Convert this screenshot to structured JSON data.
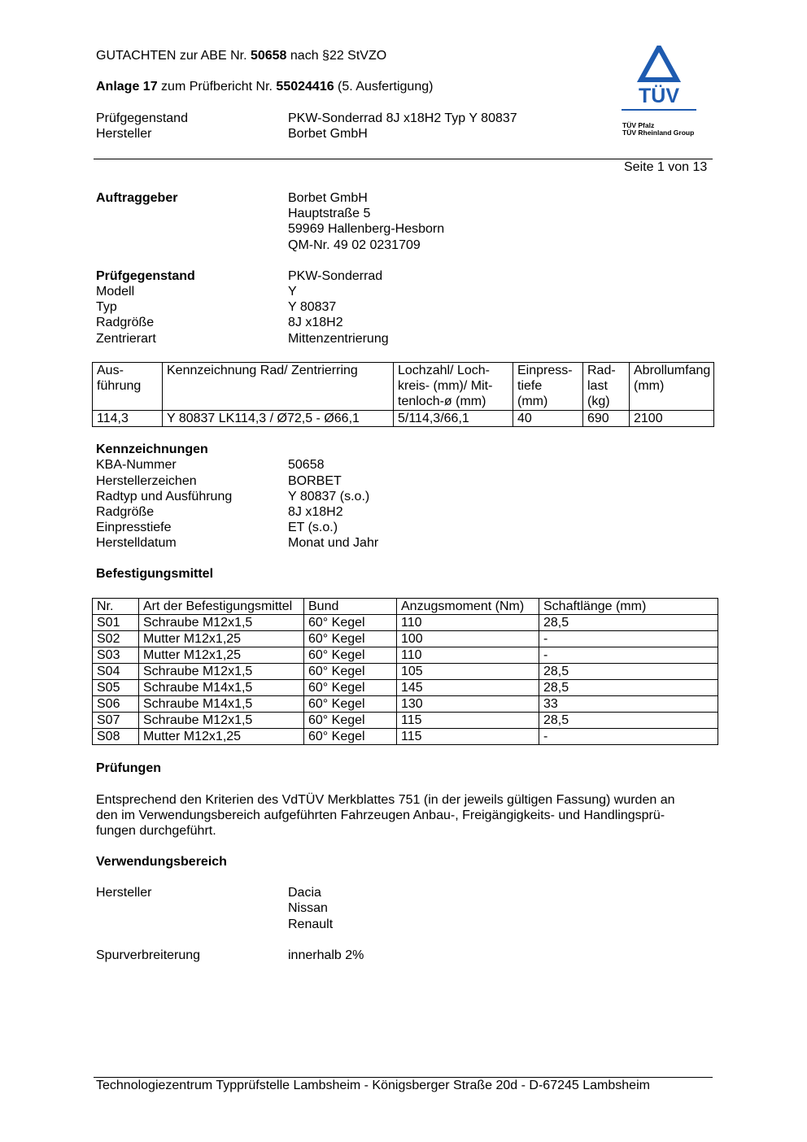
{
  "header": {
    "line1_pre": "GUTACHTEN zur ABE Nr. ",
    "line1_bold": "50658",
    "line1_post": " nach §22 StVZO",
    "line2_bold1": "Anlage 17",
    "line2_mid": " zum Prüfbericht Nr. ",
    "line2_bold2": "55024416",
    "line2_post": " (5. Ausfertigung)",
    "pg_label": "Prüfgegenstand",
    "pg_value": "PKW-Sonderrad 8J x18H2 Typ Y 80837",
    "hs_label": "Hersteller",
    "hs_value": "Borbet GmbH",
    "page": "Seite 1 von 13"
  },
  "logo": {
    "wordmark": "TÜV",
    "sub1": "TÜV Pfalz",
    "sub2": "TÜV Rheinland Group",
    "color": "#1e5bb0"
  },
  "auftraggeber": {
    "label": "Auftraggeber",
    "lines": [
      "Borbet GmbH",
      "Hauptstraße 5",
      "59969 Hallenberg-Hesborn",
      "QM-Nr. 49 02 0231709"
    ]
  },
  "pruefgegenstand": {
    "label": "Prüfgegenstand",
    "value": "PKW-Sonderrad",
    "rows": [
      {
        "k": "Modell",
        "v": "Y"
      },
      {
        "k": "Typ",
        "v": "Y 80837"
      },
      {
        "k": "Radgröße",
        "v": "8J x18H2"
      },
      {
        "k": "Zentrierart",
        "v": "Mittenzentrierung"
      }
    ]
  },
  "rad_table": {
    "headers": [
      [
        "Aus-",
        "führung"
      ],
      [
        "Kennzeichnung Rad/ Zentrierring"
      ],
      [
        "Lochzahl/ Loch-",
        "kreis- (mm)/ Mit-",
        "tenloch-ø (mm)"
      ],
      [
        "Einpress-",
        "tiefe",
        "(mm)"
      ],
      [
        "Rad-",
        "last",
        "(kg)"
      ],
      [
        "Abrollumfang",
        "(mm)"
      ]
    ],
    "row": [
      "114,3",
      "Y 80837 LK114,3 / Ø72,5 - Ø66,1",
      "5/114,3/66,1",
      "40",
      "690",
      "2100"
    ]
  },
  "kennzeichnungen": {
    "title": "Kennzeichnungen",
    "rows": [
      {
        "k": "KBA-Nummer",
        "v": "50658"
      },
      {
        "k": "Herstellerzeichen",
        "v": "BORBET"
      },
      {
        "k": "Radtyp und Ausführung",
        "v": "Y 80837 (s.o.)"
      },
      {
        "k": "Radgröße",
        "v": "8J x18H2"
      },
      {
        "k": "Einpresstiefe",
        "v": "ET (s.o.)"
      },
      {
        "k": "Herstelldatum",
        "v": "Monat und Jahr"
      }
    ]
  },
  "befestigung": {
    "title": "Befestigungsmittel",
    "headers": [
      "Nr.",
      "Art der Befestigungsmittel",
      "Bund",
      "Anzugsmoment (Nm)",
      "Schaftlänge (mm)"
    ],
    "rows": [
      [
        "S01",
        "Schraube M12x1,5",
        "60° Kegel",
        "110",
        "28,5"
      ],
      [
        "S02",
        "Mutter M12x1,25",
        "60° Kegel",
        "100",
        "-"
      ],
      [
        "S03",
        "Mutter M12x1,25",
        "60° Kegel",
        "110",
        "-"
      ],
      [
        "S04",
        "Schraube M12x1,5",
        "60° Kegel",
        "105",
        "28,5"
      ],
      [
        "S05",
        "Schraube M14x1,5",
        "60° Kegel",
        "145",
        "28,5"
      ],
      [
        "S06",
        "Schraube M14x1,5",
        "60° Kegel",
        "130",
        "33"
      ],
      [
        "S07",
        "Schraube M12x1,5",
        "60° Kegel",
        "115",
        "28,5"
      ],
      [
        "S08",
        "Mutter M12x1,25",
        "60° Kegel",
        "115",
        "-"
      ]
    ]
  },
  "pruefungen": {
    "title": "Prüfungen",
    "lines": [
      "Entsprechend den Kriterien des VdTÜV Merkblattes 751 (in der jeweils gültigen Fassung) wurden an",
      "den im Verwendungsbereich aufgeführten Fahrzeugen Anbau-, Freigängigkeits- und Handlingsprü-",
      "fungen durchgeführt."
    ]
  },
  "verwendung": {
    "title": "Verwendungsbereich",
    "hersteller_label": "Hersteller",
    "hersteller": [
      "Dacia",
      "Nissan",
      "Renault"
    ],
    "spur_label": "Spurverbreiterung",
    "spur_value": "innerhalb 2%"
  },
  "footer": {
    "text": "Technologiezentrum Typprüfstelle Lambsheim - Königsberger Straße 20d - D-67245 Lambsheim"
  }
}
